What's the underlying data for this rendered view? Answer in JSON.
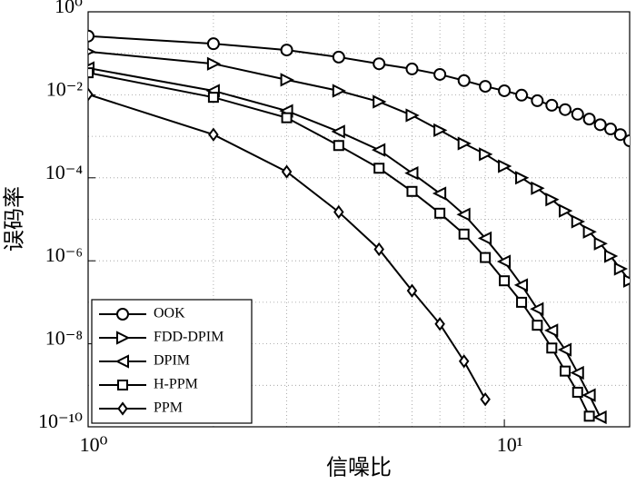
{
  "chart_data": {
    "type": "line",
    "xlabel": "信噪比",
    "ylabel": "误码率",
    "xscale": "log",
    "yscale": "log",
    "grid": true,
    "legend": "lower left",
    "xlim": [
      1,
      20
    ],
    "ylim": [
      1e-10,
      1
    ],
    "xticks": [
      {
        "value": 1,
        "label": "10⁰"
      },
      {
        "value": 10,
        "label": "10¹"
      }
    ],
    "xminor": [
      2,
      3,
      4,
      5,
      6,
      7,
      8,
      9,
      20
    ],
    "yticks": [
      {
        "value": 1e-10,
        "label": "10⁻¹⁰"
      },
      {
        "value": 1e-08,
        "label": "10⁻⁸"
      },
      {
        "value": 1e-06,
        "label": "10⁻⁶"
      },
      {
        "value": 0.0001,
        "label": "10⁻⁴"
      },
      {
        "value": 0.01,
        "label": "10⁻²"
      },
      {
        "value": 1,
        "label": "10⁰"
      }
    ],
    "yminor": [
      1e-09,
      1e-07,
      1e-05,
      0.001,
      0.1
    ],
    "series": [
      {
        "name": "OOK",
        "color": "#000000",
        "marker": "o",
        "x": [
          1,
          2,
          3,
          4,
          5,
          6,
          7,
          8,
          9,
          10,
          11,
          12,
          13,
          14,
          15,
          16,
          17,
          18,
          19,
          20
        ],
        "values": [
          0.26,
          0.17,
          0.12,
          0.081,
          0.056,
          0.042,
          0.031,
          0.022,
          0.016,
          0.0125,
          0.0098,
          0.0072,
          0.0056,
          0.0044,
          0.0034,
          0.0026,
          0.0019,
          0.0015,
          0.0011,
          0.00078
        ]
      },
      {
        "name": "FDD-DPIM",
        "color": "#000000",
        "marker": ">",
        "x": [
          1,
          2,
          3,
          4,
          5,
          6,
          7,
          8,
          9,
          10,
          11,
          12,
          13,
          14,
          15,
          16,
          17,
          18,
          19,
          20
        ],
        "values": [
          0.11,
          0.056,
          0.023,
          0.0125,
          0.0068,
          0.0032,
          0.0014,
          0.00067,
          0.00037,
          0.00019,
          0.0001,
          5.6e-05,
          3e-05,
          1.6e-05,
          8.8e-06,
          5e-06,
          2.6e-06,
          1.3e-06,
          6.4e-07,
          3.3e-07
        ]
      },
      {
        "name": "DPIM",
        "color": "#000000",
        "marker": "<",
        "x": [
          1,
          2,
          3,
          4,
          5,
          6,
          7,
          8,
          9,
          10,
          11,
          12,
          13,
          14,
          15,
          16,
          17
        ],
        "values": [
          0.044,
          0.0125,
          0.0041,
          0.0013,
          0.00047,
          0.00013,
          4.2e-05,
          1.3e-05,
          3.5e-06,
          9.6e-07,
          2.6e-07,
          6.9e-08,
          2.1e-08,
          7.2e-09,
          2e-09,
          5.8e-10,
          1.7e-10
        ]
      },
      {
        "name": "H-PPM",
        "color": "#000000",
        "marker": "s",
        "x": [
          1,
          2,
          3,
          4,
          5,
          6,
          7,
          8,
          9,
          10,
          11,
          12,
          13,
          14,
          15,
          16
        ],
        "values": [
          0.034,
          0.0087,
          0.0028,
          0.0006,
          0.00017,
          4.7e-05,
          1.4e-05,
          4.4e-06,
          1.2e-06,
          3.3e-07,
          1e-07,
          2.8e-08,
          7.9e-09,
          2.2e-09,
          6.8e-10,
          1.8e-10
        ]
      },
      {
        "name": "PPM",
        "color": "#000000",
        "marker": "d",
        "x": [
          1,
          2,
          3,
          4,
          5,
          6,
          7,
          8,
          9
        ],
        "values": [
          0.0102,
          0.0011,
          0.00014,
          1.5e-05,
          1.9e-06,
          1.9e-07,
          3e-08,
          3.8e-09,
          4.6e-10
        ]
      }
    ]
  }
}
